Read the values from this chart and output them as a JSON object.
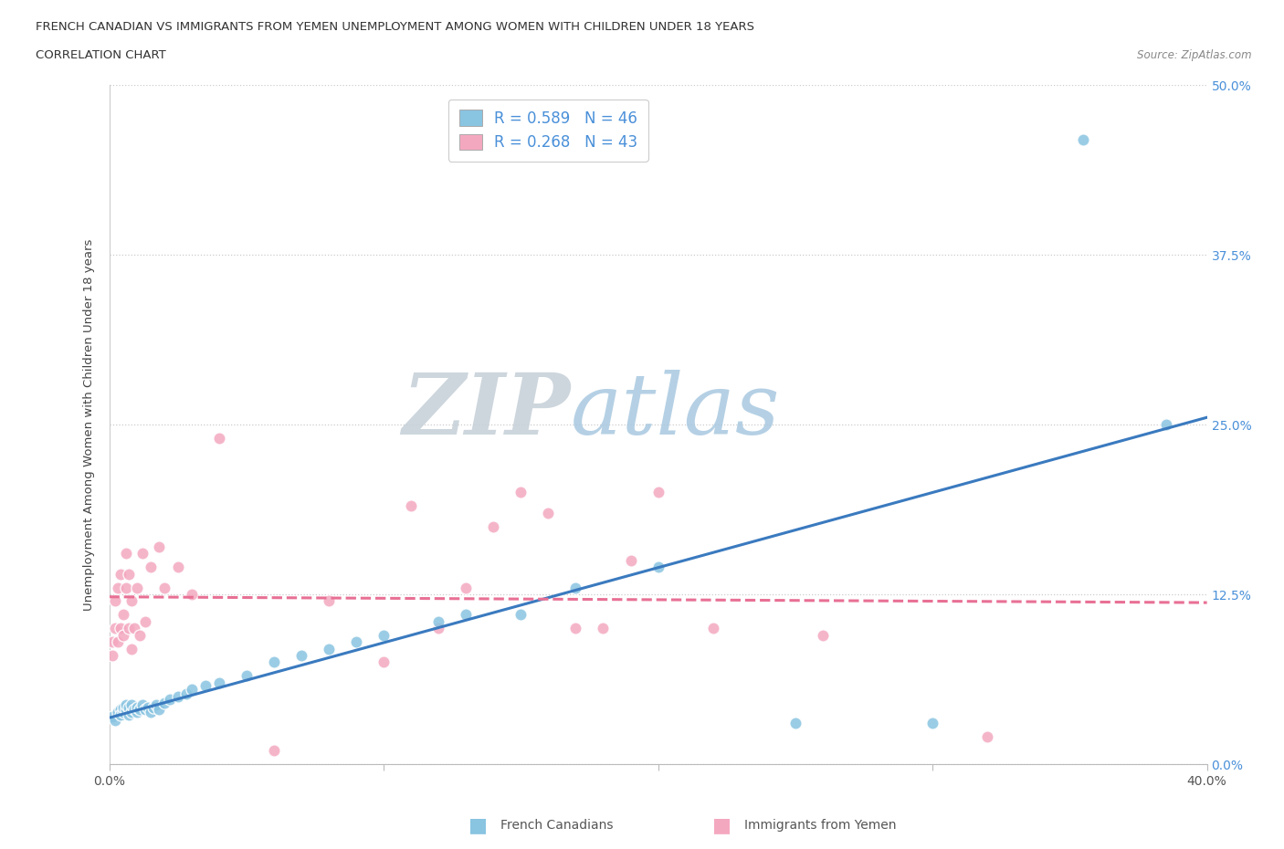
{
  "title_line1": "FRENCH CANADIAN VS IMMIGRANTS FROM YEMEN UNEMPLOYMENT AMONG WOMEN WITH CHILDREN UNDER 18 YEARS",
  "title_line2": "CORRELATION CHART",
  "source": "Source: ZipAtlas.com",
  "ylabel": "Unemployment Among Women with Children Under 18 years",
  "xlim": [
    0.0,
    0.4
  ],
  "ylim": [
    0.0,
    0.5
  ],
  "xtick_positions": [
    0.0,
    0.1,
    0.2,
    0.3,
    0.4
  ],
  "xtick_labels": [
    "0.0%",
    "",
    "",
    "",
    "40.0%"
  ],
  "ytick_positions": [
    0.0,
    0.125,
    0.25,
    0.375,
    0.5
  ],
  "ytick_labels": [
    "0.0%",
    "12.5%",
    "25.0%",
    "37.5%",
    "50.0%"
  ],
  "blue_R": 0.589,
  "blue_N": 46,
  "pink_R": 0.268,
  "pink_N": 43,
  "blue_scatter_color": "#89c4e1",
  "pink_scatter_color": "#f4a8c0",
  "blue_line_color": "#3a7abf",
  "pink_line_color": "#e87095",
  "watermark_ZIP": "ZIP",
  "watermark_atlas": "atlas",
  "legend_label_blue": "French Canadians",
  "legend_label_pink": "Immigrants from Yemen",
  "blue_x": [
    0.001,
    0.002,
    0.003,
    0.004,
    0.004,
    0.005,
    0.005,
    0.006,
    0.006,
    0.007,
    0.007,
    0.008,
    0.008,
    0.009,
    0.01,
    0.01,
    0.011,
    0.012,
    0.013,
    0.014,
    0.015,
    0.016,
    0.017,
    0.018,
    0.02,
    0.022,
    0.025,
    0.028,
    0.03,
    0.035,
    0.04,
    0.05,
    0.06,
    0.07,
    0.08,
    0.09,
    0.1,
    0.12,
    0.13,
    0.15,
    0.17,
    0.2,
    0.25,
    0.3,
    0.355,
    0.385
  ],
  "blue_y": [
    0.035,
    0.032,
    0.038,
    0.04,
    0.036,
    0.038,
    0.042,
    0.04,
    0.044,
    0.036,
    0.042,
    0.038,
    0.044,
    0.04,
    0.038,
    0.042,
    0.04,
    0.044,
    0.04,
    0.042,
    0.038,
    0.042,
    0.044,
    0.04,
    0.045,
    0.048,
    0.05,
    0.052,
    0.055,
    0.058,
    0.06,
    0.065,
    0.075,
    0.08,
    0.085,
    0.09,
    0.095,
    0.105,
    0.11,
    0.11,
    0.13,
    0.145,
    0.03,
    0.03,
    0.46,
    0.25
  ],
  "pink_x": [
    0.001,
    0.001,
    0.002,
    0.002,
    0.003,
    0.003,
    0.004,
    0.004,
    0.005,
    0.005,
    0.006,
    0.006,
    0.007,
    0.007,
    0.008,
    0.008,
    0.009,
    0.01,
    0.011,
    0.012,
    0.013,
    0.015,
    0.018,
    0.02,
    0.025,
    0.03,
    0.04,
    0.06,
    0.08,
    0.1,
    0.11,
    0.12,
    0.13,
    0.14,
    0.15,
    0.16,
    0.17,
    0.18,
    0.19,
    0.2,
    0.22,
    0.26,
    0.32
  ],
  "pink_y": [
    0.08,
    0.09,
    0.1,
    0.12,
    0.09,
    0.13,
    0.1,
    0.14,
    0.11,
    0.095,
    0.13,
    0.155,
    0.1,
    0.14,
    0.12,
    0.085,
    0.1,
    0.13,
    0.095,
    0.155,
    0.105,
    0.145,
    0.16,
    0.13,
    0.145,
    0.125,
    0.24,
    0.01,
    0.12,
    0.075,
    0.19,
    0.1,
    0.13,
    0.175,
    0.2,
    0.185,
    0.1,
    0.1,
    0.15,
    0.2,
    0.1,
    0.095,
    0.02
  ]
}
